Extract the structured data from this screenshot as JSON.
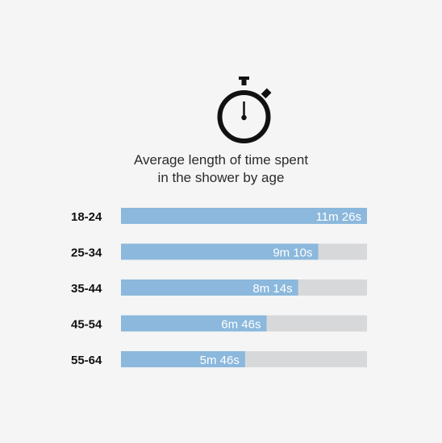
{
  "title_lines": [
    "Average length of time spent",
    "in the shower by age"
  ],
  "icon": "stopwatch-icon",
  "colors": {
    "bar": "#8bb8dc",
    "track": "#d7d8da",
    "value_text": "#ffffff",
    "label_text": "#111111",
    "background": "#f4f5f4"
  },
  "chart_data": {
    "type": "bar",
    "orientation": "horizontal",
    "title": "Average length of time spent in the shower by age",
    "categories": [
      "18-24",
      "25-34",
      "35-44",
      "45-54",
      "55-64"
    ],
    "values": [
      686,
      550,
      494,
      406,
      346
    ],
    "units": "seconds",
    "value_labels": [
      "11m 26s",
      "9m 10s",
      "8m 14s",
      "6m 46s",
      "5m 46s"
    ],
    "xlim": [
      0,
      686
    ],
    "grid": false,
    "legend": "none"
  }
}
